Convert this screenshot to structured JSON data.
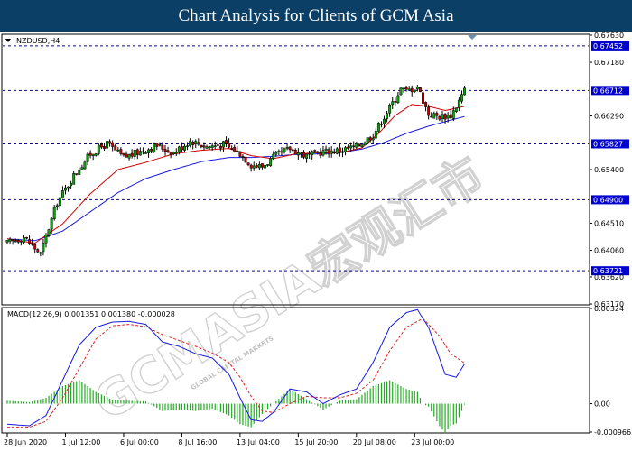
{
  "header": {
    "title": "Chart Analysis for Clients of GCM Asia"
  },
  "watermark": {
    "main": "GCMASIA宏观汇市",
    "sub": "GLOBAL CAPITAL MARKETS"
  },
  "colors": {
    "bull": "#00aa00",
    "bear": "#cc0000",
    "wick": "#000000",
    "ma_fast": "#d40000",
    "ma_slow": "#1a1adf",
    "macd_line": "#1a1adf",
    "signal_line": "#e02020",
    "hist": "#22aa22",
    "level_line": "#0000bb",
    "label_bg": "#0000cc"
  },
  "chart_data": [
    {
      "type": "candlestick",
      "title": "NZDUSD,H4",
      "ylim": [
        0.6317,
        0.6763
      ],
      "y_ticks": [
        "0.67630",
        "0.67180",
        "0.66290",
        "0.65400",
        "0.64510",
        "0.64060",
        "0.63620",
        "0.63170"
      ],
      "levels": [
        "0.67452",
        "0.66712",
        "0.65827",
        "0.64900",
        "0.63721"
      ],
      "x_ticks": [
        "28 Jun 2020",
        "1 Jul 12:00",
        "6 Jul 00:00",
        "8 Jul 16:00",
        "13 Jul 04:00",
        "15 Jul 20:00",
        "20 Jul 08:00",
        "23 Jul 00:00"
      ],
      "x_tick_index": [
        0,
        21,
        42,
        63,
        84,
        105,
        126,
        147
      ],
      "last_index": 165,
      "candle_anchors": [
        [
          0,
          0.6418
        ],
        [
          6,
          0.6428
        ],
        [
          12,
          0.64
        ],
        [
          18,
          0.6486
        ],
        [
          24,
          0.653
        ],
        [
          30,
          0.6566
        ],
        [
          36,
          0.6583
        ],
        [
          42,
          0.656
        ],
        [
          48,
          0.657
        ],
        [
          54,
          0.658
        ],
        [
          60,
          0.6568
        ],
        [
          66,
          0.6588
        ],
        [
          72,
          0.6578
        ],
        [
          78,
          0.6582
        ],
        [
          84,
          0.6567
        ],
        [
          88,
          0.6548
        ],
        [
          92,
          0.6545
        ],
        [
          96,
          0.656
        ],
        [
          102,
          0.6575
        ],
        [
          108,
          0.6562
        ],
        [
          114,
          0.657
        ],
        [
          120,
          0.6572
        ],
        [
          126,
          0.6578
        ],
        [
          132,
          0.6598
        ],
        [
          138,
          0.6643
        ],
        [
          142,
          0.6674
        ],
        [
          144,
          0.667
        ],
        [
          148,
          0.6678
        ],
        [
          152,
          0.6632
        ],
        [
          156,
          0.6628
        ],
        [
          160,
          0.663
        ],
        [
          162,
          0.6645
        ],
        [
          165,
          0.6672
        ]
      ],
      "ma_fast_anchors": [
        [
          0,
          0.6425
        ],
        [
          10,
          0.6418
        ],
        [
          20,
          0.645
        ],
        [
          30,
          0.65
        ],
        [
          40,
          0.654
        ],
        [
          50,
          0.6552
        ],
        [
          60,
          0.6566
        ],
        [
          70,
          0.6572
        ],
        [
          80,
          0.6575
        ],
        [
          88,
          0.6563
        ],
        [
          96,
          0.6558
        ],
        [
          104,
          0.6566
        ],
        [
          112,
          0.6568
        ],
        [
          120,
          0.6568
        ],
        [
          128,
          0.6576
        ],
        [
          134,
          0.66
        ],
        [
          140,
          0.663
        ],
        [
          146,
          0.6648
        ],
        [
          152,
          0.6645
        ],
        [
          158,
          0.6638
        ],
        [
          165,
          0.6645
        ]
      ],
      "ma_slow_anchors": [
        [
          0,
          0.6425
        ],
        [
          10,
          0.6422
        ],
        [
          20,
          0.6438
        ],
        [
          30,
          0.647
        ],
        [
          40,
          0.6502
        ],
        [
          50,
          0.6525
        ],
        [
          60,
          0.654
        ],
        [
          70,
          0.6553
        ],
        [
          80,
          0.656
        ],
        [
          88,
          0.656
        ],
        [
          96,
          0.6562
        ],
        [
          104,
          0.6565
        ],
        [
          112,
          0.6566
        ],
        [
          120,
          0.6568
        ],
        [
          128,
          0.6574
        ],
        [
          136,
          0.6585
        ],
        [
          144,
          0.66
        ],
        [
          152,
          0.6612
        ],
        [
          160,
          0.6622
        ],
        [
          165,
          0.6628
        ]
      ]
    },
    {
      "type": "macd",
      "title": "MACD(12,26,9) 0.001351 0.001380 -0.000028",
      "ylim": [
        -0.000966,
        0.00324
      ],
      "y_ticks": [
        "0.00324",
        "0.00",
        "-0.000966"
      ],
      "macd_anchors": [
        [
          0,
          -0.0007
        ],
        [
          8,
          -0.00075
        ],
        [
          14,
          -0.0004
        ],
        [
          20,
          0.0008
        ],
        [
          26,
          0.002
        ],
        [
          32,
          0.0026
        ],
        [
          38,
          0.00278
        ],
        [
          44,
          0.0028
        ],
        [
          50,
          0.0027
        ],
        [
          56,
          0.0021
        ],
        [
          62,
          0.00195
        ],
        [
          68,
          0.0017
        ],
        [
          74,
          0.00155
        ],
        [
          80,
          0.001
        ],
        [
          84,
          0.0002
        ],
        [
          88,
          -0.00055
        ],
        [
          92,
          -0.0006
        ],
        [
          96,
          -0.0003
        ],
        [
          102,
          0.0005
        ],
        [
          108,
          0.0004
        ],
        [
          114,
          0.0
        ],
        [
          120,
          0.0003
        ],
        [
          126,
          0.0005
        ],
        [
          132,
          0.0014
        ],
        [
          138,
          0.0026
        ],
        [
          144,
          0.0031
        ],
        [
          148,
          0.0032
        ],
        [
          152,
          0.0026
        ],
        [
          158,
          0.001
        ],
        [
          162,
          0.0009
        ],
        [
          165,
          0.00135
        ]
      ],
      "signal_anchors": [
        [
          0,
          -0.0008
        ],
        [
          8,
          -0.0008
        ],
        [
          14,
          -0.0006
        ],
        [
          20,
          0.0002
        ],
        [
          26,
          0.0012
        ],
        [
          32,
          0.0022
        ],
        [
          38,
          0.00265
        ],
        [
          44,
          0.0027
        ],
        [
          50,
          0.00262
        ],
        [
          56,
          0.00235
        ],
        [
          62,
          0.00215
        ],
        [
          68,
          0.00195
        ],
        [
          74,
          0.00172
        ],
        [
          80,
          0.0014
        ],
        [
          84,
          0.0009
        ],
        [
          88,
          0.00025
        ],
        [
          92,
          -0.00025
        ],
        [
          96,
          -0.0003
        ],
        [
          102,
          0.0
        ],
        [
          108,
          0.00025
        ],
        [
          114,
          0.0002
        ],
        [
          120,
          0.0002
        ],
        [
          126,
          0.00035
        ],
        [
          132,
          0.0008
        ],
        [
          138,
          0.0018
        ],
        [
          144,
          0.0026
        ],
        [
          150,
          0.0029
        ],
        [
          156,
          0.0023
        ],
        [
          160,
          0.0017
        ],
        [
          165,
          0.00138
        ]
      ]
    }
  ]
}
